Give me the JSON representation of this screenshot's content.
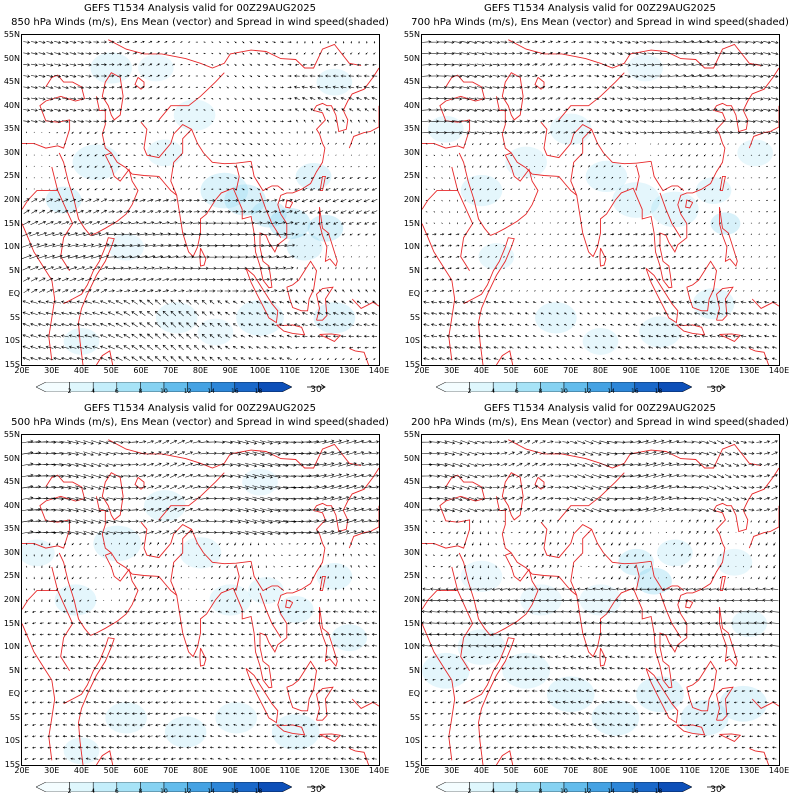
{
  "figure": {
    "colors": {
      "coast": "#e8282a",
      "vector": "#000000",
      "frame": "#000000"
    },
    "colorbar": {
      "levels": [
        "2",
        "4",
        "6",
        "8",
        "10",
        "12",
        "14",
        "16",
        "18"
      ],
      "colors": [
        "#f4fdff",
        "#dff7fd",
        "#c4eefb",
        "#a7e3f7",
        "#86d2f2",
        "#63bcec",
        "#45a2e3",
        "#2c86d8",
        "#1a68c9",
        "#0d4fb8"
      ]
    },
    "reference_vector": "30",
    "y_labels": [
      "55N",
      "50N",
      "45N",
      "40N",
      "35N",
      "30N",
      "25N",
      "20N",
      "15N",
      "10N",
      "5N",
      "EQ",
      "5S",
      "10S",
      "15S"
    ],
    "x_labels": [
      "20E",
      "30E",
      "40E",
      "50E",
      "60E",
      "70E",
      "80E",
      "90E",
      "100E",
      "110E",
      "120E",
      "130E",
      "140E"
    ],
    "domain": {
      "lon": [
        20,
        140
      ],
      "lat": [
        -15,
        55
      ]
    }
  },
  "panels": [
    {
      "title_line1": "GEFS T1534 Analysis valid for 00Z29AUG2025",
      "title_line2": "850 hPa Winds (m/s), Ens Mean (vector) and Spread in wind speed(shaded)",
      "level": 850
    },
    {
      "title_line1": "GEFS T1534 Analysis valid for 00Z29AUG2025",
      "title_line2": "700 hPa Winds (m/s), Ens Mean (vector) and Spread in wind speed(shaded)",
      "level": 700
    },
    {
      "title_line1": "GEFS T1534 Analysis valid for 00Z29AUG2025",
      "title_line2": "500 hPa Winds (m/s), Ens Mean (vector) and Spread in wind speed(shaded)",
      "level": 500
    },
    {
      "title_line1": "GEFS T1534 Analysis valid for 00Z29AUG2025",
      "title_line2": "200 hPa Winds (m/s), Ens Mean (vector) and Spread in wind speed(shaded)",
      "level": 200
    }
  ]
}
